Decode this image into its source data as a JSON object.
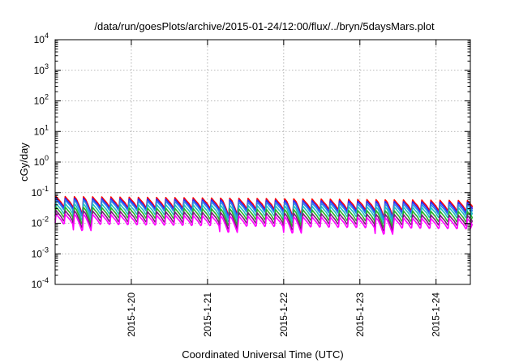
{
  "chart_data": {
    "type": "line",
    "title": "/data/run/goesPlots/archive/2015-01-24/12:00/flux/../bryn/5daysMars.plot",
    "xlabel": "Coordinated Universal Time (UTC)",
    "ylabel": "cGy/day",
    "yscale": "log",
    "ylim": [
      0.0001,
      10000
    ],
    "xlim": [
      0,
      5.45
    ],
    "grid": true,
    "y_ticks": [
      {
        "value": 0.0001,
        "base": "10",
        "exp": "-4"
      },
      {
        "value": 0.001,
        "base": "10",
        "exp": "-3"
      },
      {
        "value": 0.01,
        "base": "10",
        "exp": "-2"
      },
      {
        "value": 0.1,
        "base": "10",
        "exp": "-1"
      },
      {
        "value": 1,
        "base": "10",
        "exp": "0"
      },
      {
        "value": 10,
        "base": "10",
        "exp": "1"
      },
      {
        "value": 100,
        "base": "10",
        "exp": "2"
      },
      {
        "value": 1000,
        "base": "10",
        "exp": "3"
      },
      {
        "value": 10000,
        "base": "10",
        "exp": "4"
      }
    ],
    "x_ticks": [
      {
        "value": 1.0,
        "label": "2015-1-20"
      },
      {
        "value": 2.0,
        "label": "2015-1-21"
      },
      {
        "value": 3.0,
        "label": "2015-1-22"
      },
      {
        "value": 4.0,
        "label": "2015-1-23"
      },
      {
        "value": 5.0,
        "label": "2015-1-24"
      }
    ],
    "sawtooth": {
      "x_start": 0.0,
      "x_end": 5.45,
      "period_days": 0.12,
      "dip_positions": [
        0.42,
        2.35,
        3.22,
        4.32
      ]
    },
    "series": [
      {
        "color": "#ff0000",
        "peak_start": 0.075,
        "trough_start": 0.036,
        "peak_end": 0.055,
        "trough_end": 0.026
      },
      {
        "color": "#2a2aff",
        "peak_start": 0.066,
        "trough_start": 0.032,
        "peak_end": 0.048,
        "trough_end": 0.022
      },
      {
        "color": "#2e8be6",
        "peak_start": 0.058,
        "trough_start": 0.028,
        "peak_end": 0.04,
        "trough_end": 0.019
      },
      {
        "color": "#20c0c0",
        "peak_start": 0.044,
        "trough_start": 0.021,
        "peak_end": 0.032,
        "trough_end": 0.015
      },
      {
        "color": "#2ab02a",
        "peak_start": 0.034,
        "trough_start": 0.016,
        "peak_end": 0.024,
        "trough_end": 0.011
      },
      {
        "color": "#7a1a7a",
        "peak_start": 0.026,
        "trough_start": 0.012,
        "peak_end": 0.018,
        "trough_end": 0.0085
      },
      {
        "color": "#ff00ff",
        "peak_start": 0.02,
        "trough_start": 0.0095,
        "peak_end": 0.014,
        "trough_end": 0.0065
      }
    ]
  }
}
